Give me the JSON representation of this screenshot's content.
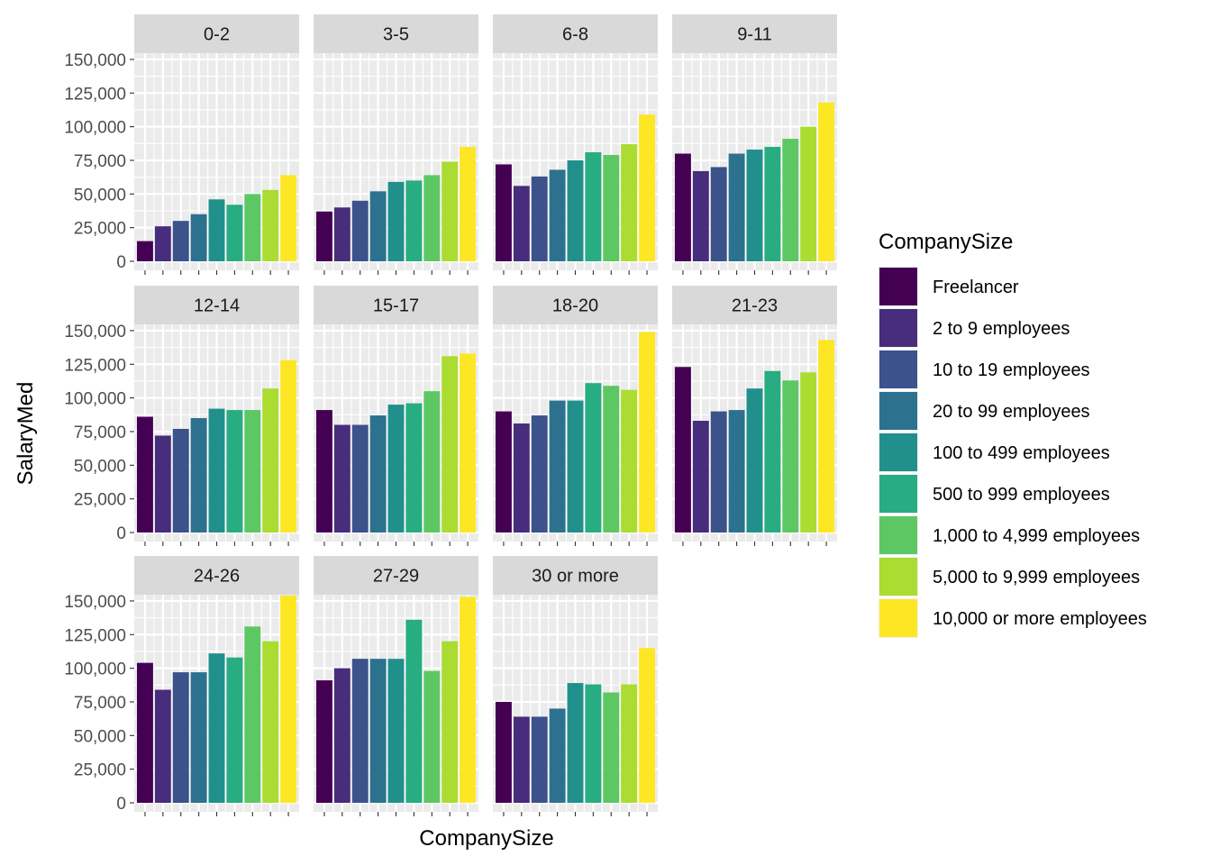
{
  "chart_data": {
    "type": "bar",
    "facet_variable": "YearsCoding",
    "xlabel": "CompanySize",
    "ylabel": "SalaryMed",
    "ylim": [
      0,
      160000
    ],
    "y_ticks": [
      0,
      25000,
      50000,
      75000,
      100000,
      125000,
      150000
    ],
    "y_tick_labels": [
      "0",
      "25,000",
      "50,000",
      "75,000",
      "100,000",
      "125,000",
      "150,000"
    ],
    "grid": true,
    "legend": {
      "title": "CompanySize",
      "position": "right"
    },
    "categories": [
      "Freelancer",
      "2 to 9 employees",
      "10 to 19 employees",
      "20 to 99 employees",
      "100 to 499 employees",
      "500 to 999 employees",
      "1,000 to 4,999 employees",
      "5,000 to 9,999 employees",
      "10,000 or more employees"
    ],
    "colors": [
      "#440154",
      "#472D7B",
      "#3B528B",
      "#2C728E",
      "#21908C",
      "#27AD81",
      "#5DC863",
      "#AADC32",
      "#FDE725"
    ],
    "facets": [
      {
        "label": "0-2",
        "values": [
          15000,
          26000,
          30000,
          35000,
          46000,
          42000,
          50000,
          53000,
          64000
        ]
      },
      {
        "label": "3-5",
        "values": [
          37000,
          40000,
          45000,
          52000,
          59000,
          60000,
          64000,
          74000,
          85000
        ]
      },
      {
        "label": "6-8",
        "values": [
          72000,
          56000,
          63000,
          68000,
          75000,
          81000,
          79000,
          87000,
          109000
        ]
      },
      {
        "label": "9-11",
        "values": [
          80000,
          67000,
          70000,
          80000,
          83000,
          85000,
          91000,
          100000,
          118000
        ]
      },
      {
        "label": "12-14",
        "values": [
          86000,
          72000,
          77000,
          85000,
          92000,
          91000,
          91000,
          107000,
          128000
        ]
      },
      {
        "label": "15-17",
        "values": [
          91000,
          80000,
          80000,
          87000,
          95000,
          96000,
          105000,
          131000,
          133000
        ]
      },
      {
        "label": "18-20",
        "values": [
          90000,
          81000,
          87000,
          98000,
          98000,
          111000,
          109000,
          106000,
          149000
        ]
      },
      {
        "label": "21-23",
        "values": [
          123000,
          83000,
          90000,
          91000,
          107000,
          120000,
          113000,
          119000,
          143000
        ]
      },
      {
        "label": "24-26",
        "values": [
          104000,
          84000,
          97000,
          97000,
          111000,
          108000,
          131000,
          120000,
          154000
        ]
      },
      {
        "label": "27-29",
        "values": [
          91000,
          100000,
          107000,
          107000,
          107000,
          136000,
          98000,
          120000,
          153000
        ]
      },
      {
        "label": "30 or more",
        "values": [
          75000,
          64000,
          64000,
          70000,
          89000,
          88000,
          82000,
          88000,
          115000
        ]
      }
    ]
  }
}
